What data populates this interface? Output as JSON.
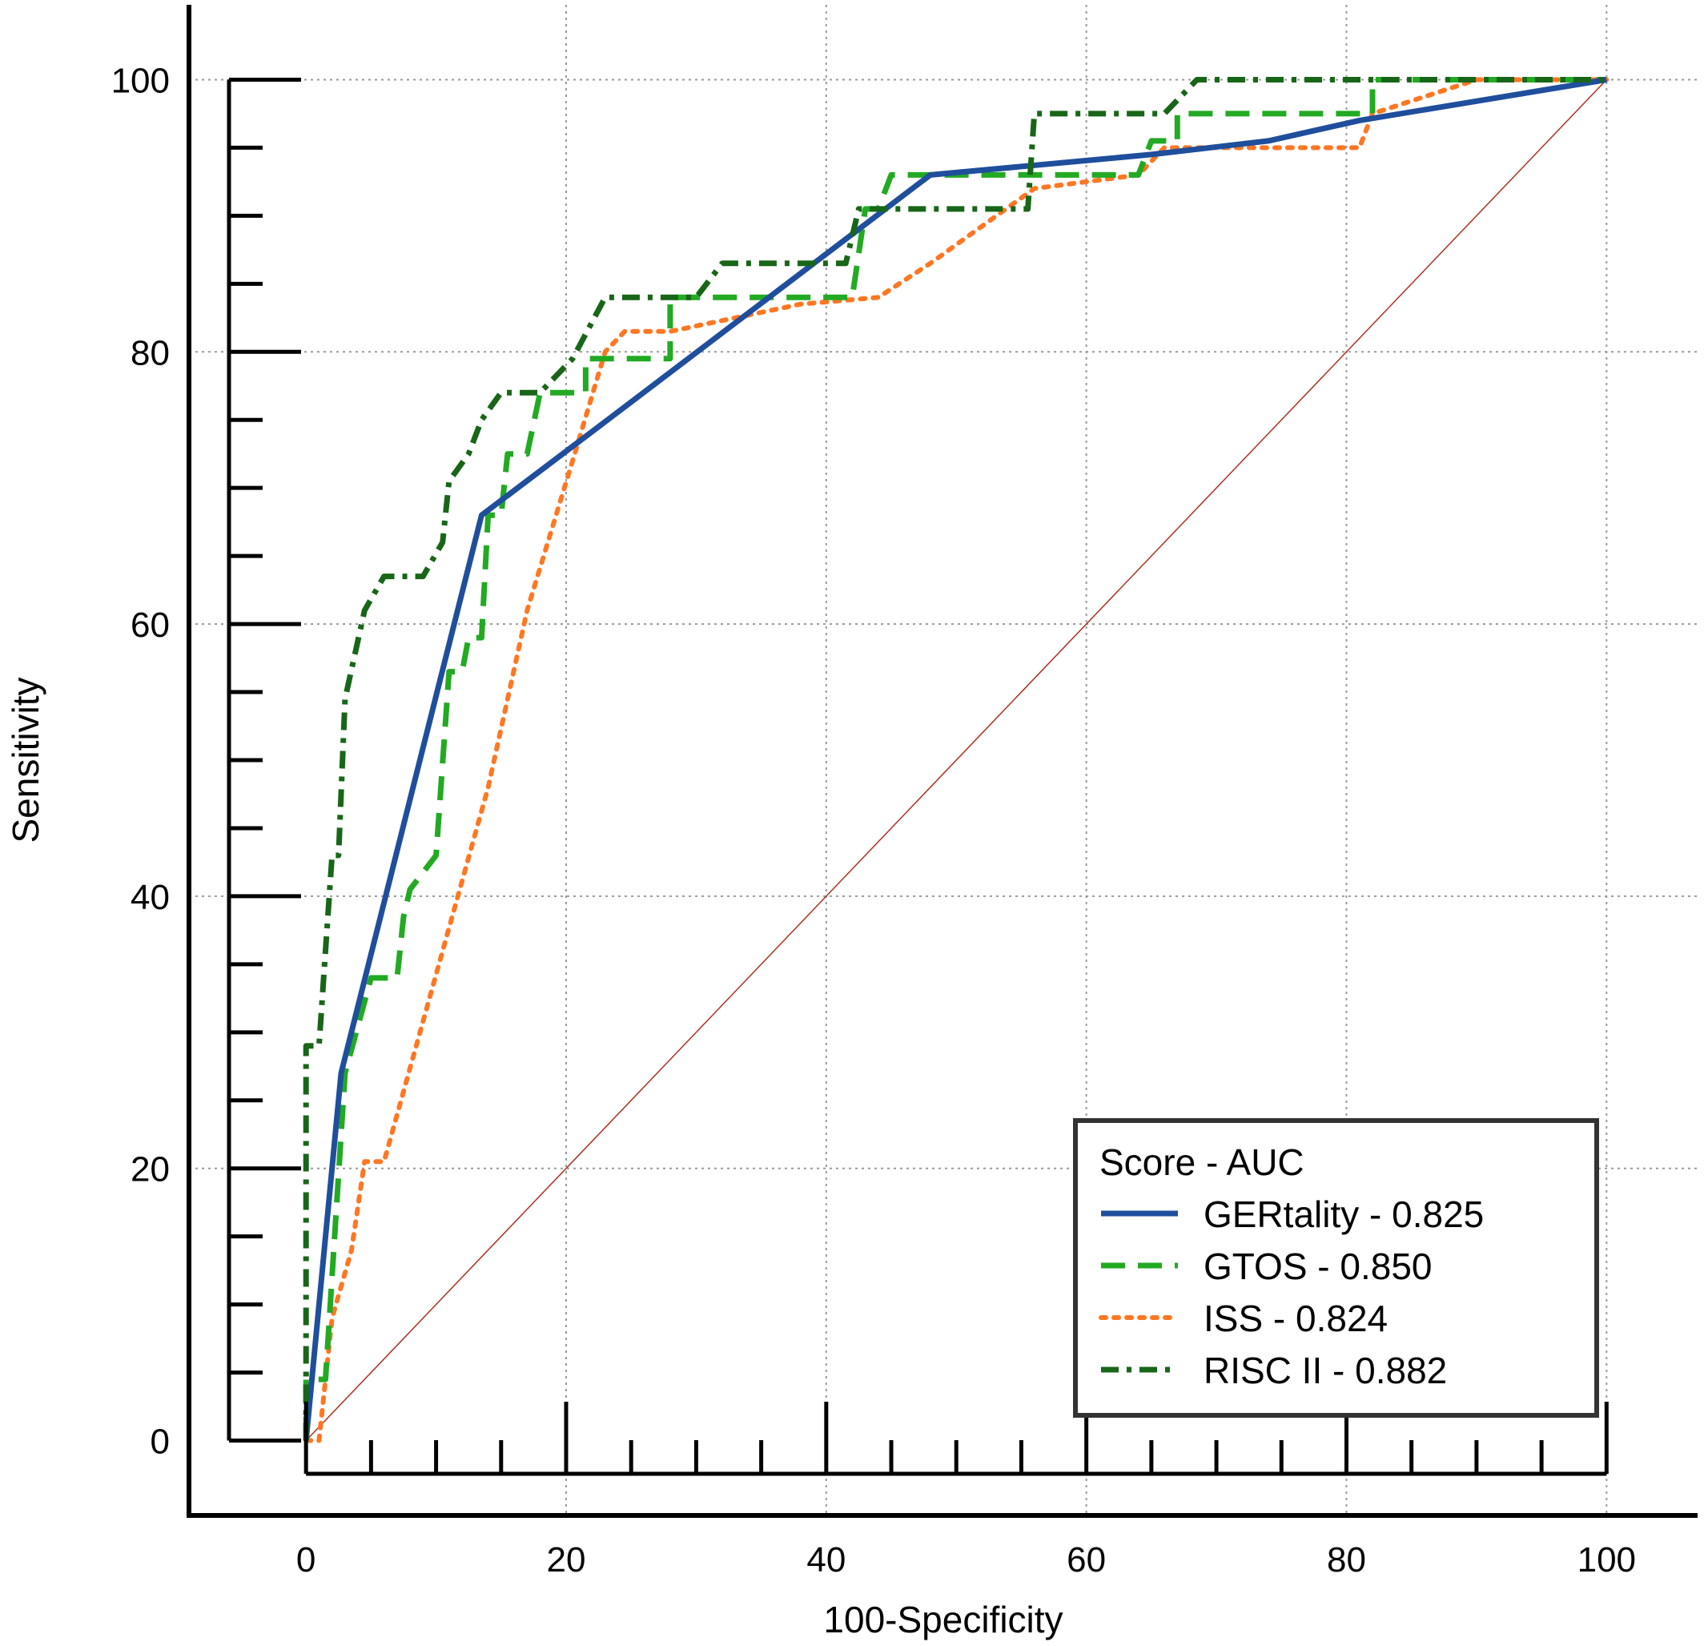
{
  "chart_data": {
    "type": "line",
    "title": "",
    "xlabel": "100-Specificity",
    "ylabel": "Sensitivity",
    "xlim": [
      -9,
      107
    ],
    "ylim": [
      -5.5,
      105.5
    ],
    "xticks": [
      0,
      20,
      40,
      60,
      80,
      100
    ],
    "yticks": [
      0,
      20,
      40,
      60,
      80,
      100
    ],
    "minor_step": 5,
    "grid": true,
    "legend": {
      "title": "Score - AUC",
      "position": "bottom-right"
    },
    "series": [
      {
        "name": "GERtality - 0.825",
        "color": "#1f4e9c",
        "dash": "solid",
        "points": [
          [
            0,
            0
          ],
          [
            2.7,
            27
          ],
          [
            13.5,
            68
          ],
          [
            22.5,
            74.5
          ],
          [
            48,
            93
          ],
          [
            65,
            94.5
          ],
          [
            74,
            95.5
          ],
          [
            81,
            97
          ],
          [
            100,
            100
          ]
        ]
      },
      {
        "name": "GTOS - 0.850",
        "color": "#22aa22",
        "dash": "dashed",
        "points": [
          [
            0,
            0
          ],
          [
            0,
            4.5
          ],
          [
            1.5,
            4.5
          ],
          [
            3,
            27
          ],
          [
            5,
            34
          ],
          [
            7,
            34
          ],
          [
            7.5,
            38.5
          ],
          [
            8,
            40.5
          ],
          [
            10,
            43
          ],
          [
            11,
            56.5
          ],
          [
            12,
            56.5
          ],
          [
            12.5,
            59
          ],
          [
            13.5,
            59
          ],
          [
            14,
            68
          ],
          [
            15,
            68
          ],
          [
            15.5,
            72.5
          ],
          [
            17,
            72.5
          ],
          [
            18,
            77
          ],
          [
            21.5,
            77
          ],
          [
            21.5,
            79.5
          ],
          [
            28,
            79.5
          ],
          [
            28,
            84
          ],
          [
            42,
            84
          ],
          [
            43,
            90.5
          ],
          [
            44,
            90.5
          ],
          [
            45,
            93
          ],
          [
            56,
            93
          ],
          [
            56,
            93
          ],
          [
            64,
            93
          ],
          [
            65,
            95.5
          ],
          [
            67,
            95.5
          ],
          [
            67,
            97.5
          ],
          [
            82,
            97.5
          ],
          [
            82,
            100
          ],
          [
            100,
            100
          ]
        ]
      },
      {
        "name": "ISS - 0.824",
        "color": "#ff7722",
        "dash": "dotted",
        "points": [
          [
            0,
            0
          ],
          [
            1,
            0
          ],
          [
            2,
            9
          ],
          [
            3.5,
            14
          ],
          [
            4.5,
            20.5
          ],
          [
            6,
            20.5
          ],
          [
            14,
            48
          ],
          [
            17,
            61
          ],
          [
            20.5,
            72
          ],
          [
            23,
            80
          ],
          [
            24.5,
            81.5
          ],
          [
            28,
            81.5
          ],
          [
            38,
            83.5
          ],
          [
            44,
            84
          ],
          [
            48,
            86.5
          ],
          [
            56,
            92
          ],
          [
            64,
            93
          ],
          [
            66,
            95
          ],
          [
            81,
            95
          ],
          [
            82,
            97.5
          ],
          [
            90,
            100
          ],
          [
            100,
            100
          ]
        ]
      },
      {
        "name": "RISC II - 0.882",
        "color": "#186618",
        "dash": "dashdot",
        "points": [
          [
            0,
            0
          ],
          [
            0,
            29
          ],
          [
            1,
            29
          ],
          [
            1.5,
            36
          ],
          [
            2,
            43
          ],
          [
            2.5,
            43
          ],
          [
            3,
            54.5
          ],
          [
            4.5,
            61
          ],
          [
            6,
            63.5
          ],
          [
            9,
            63.5
          ],
          [
            10.5,
            66
          ],
          [
            11,
            70.5
          ],
          [
            12.5,
            72.5
          ],
          [
            13.5,
            75
          ],
          [
            15,
            77
          ],
          [
            18,
            77
          ],
          [
            20.5,
            79.5
          ],
          [
            23,
            84
          ],
          [
            30,
            84
          ],
          [
            32,
            86.5
          ],
          [
            41.5,
            86.5
          ],
          [
            42,
            88.5
          ],
          [
            42.5,
            90.5
          ],
          [
            55.5,
            90.5
          ],
          [
            56,
            97.5
          ],
          [
            66,
            97.5
          ],
          [
            68.5,
            100
          ],
          [
            100,
            100
          ]
        ]
      },
      {
        "name": "",
        "color": "#b03020",
        "dash": "reference",
        "points": [
          [
            0,
            0
          ],
          [
            100,
            100
          ]
        ]
      }
    ]
  }
}
